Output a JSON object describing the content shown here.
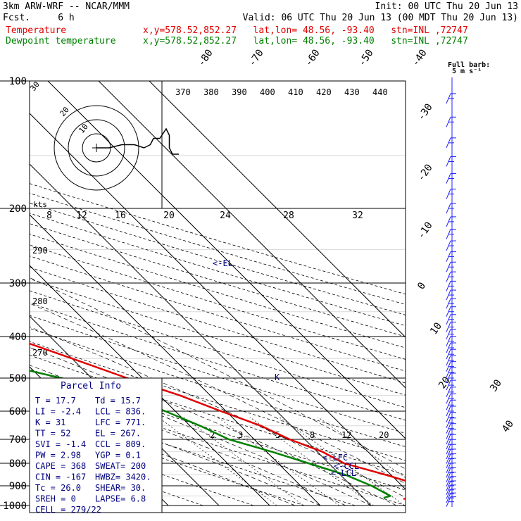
{
  "header": {
    "model": "3km ARW-WRF -- NCAR/MMM",
    "init": "Init: 00 UTC Thu 20 Jun 13",
    "fcst": "Fcst.     6 h",
    "valid": "Valid: 06 UTC Thu 20 Jun 13 (00 MDT Thu 20 Jun 13)",
    "temp_label": "Temperature",
    "temp_info": "x,y=578.52,852.27   lat,lon= 48.56, -93.40   stn=INL ,72747",
    "dew_label": "Dewpoint temperature",
    "dew_info": "x,y=578.52,852.27   lat,lon= 48.56, -93.40   stn=INL ,72747",
    "barb_note_1": "Full barb:",
    "barb_note_2": "5 m s⁻¹"
  },
  "colors": {
    "temperature": "#e00000",
    "dewpoint": "#008000",
    "text_blue": "#000080",
    "barb_blue": "#2020ff"
  },
  "parcel_info": {
    "title": "Parcel Info",
    "rows": [
      [
        "T  =   17.7",
        "Td =  15.7"
      ],
      [
        "LI =   -2.4",
        "LCL =  836."
      ],
      [
        "K  =     31",
        "LFC =  771."
      ],
      [
        "TT =     52",
        "EL  =  267."
      ],
      [
        "SVI =  -1.4",
        "CCL =  809."
      ],
      [
        "PW =   2.98",
        "YGP =   0.1"
      ],
      [
        "CAPE =  368",
        "SWEAT=  200"
      ],
      [
        "CIN =  -167",
        "HWBZ= 3420."
      ],
      [
        "Tc =   26.0",
        "SHEAR=  30."
      ],
      [
        "SREH =    0",
        "LAPSE=  6.8"
      ],
      [
        "CELL = 279/22",
        ""
      ]
    ]
  },
  "chart_data": {
    "type": "skew-t",
    "pressure_levels": [
      "100",
      "200",
      "300",
      "400",
      "500",
      "600",
      "700",
      "800",
      "900",
      "1000"
    ],
    "isotherm_labels": [
      "-80",
      "-70",
      "-60",
      "-50",
      "-40",
      "-30",
      "-20",
      "-10",
      "0",
      "10",
      "20",
      "30",
      "40"
    ],
    "theta_labels": [
      "370",
      "380",
      "390",
      "400",
      "410",
      "420",
      "430",
      "440"
    ],
    "theta_left_labels": [
      "290",
      "280",
      "270"
    ],
    "hodograph_ticks": [
      "8",
      "12",
      "16",
      "20",
      "24",
      "28",
      "32"
    ],
    "hodograph_unit": "kts",
    "mixing_ratio_labels": [
      "2",
      "3",
      "5",
      "8",
      "12",
      "20"
    ],
    "parcel_markers": [
      "<-EL",
      "<-LFC",
      "<-CCL",
      "<-LCL",
      "K"
    ],
    "hodo_ring_labels": [
      "30",
      "20",
      "10"
    ],
    "temperature": {
      "name": "Temperature",
      "points": [
        [
          100,
          -55
        ],
        [
          120,
          -60
        ],
        [
          140,
          -64
        ],
        [
          160,
          -67
        ],
        [
          180,
          -70
        ],
        [
          200,
          -70
        ],
        [
          250,
          -56
        ],
        [
          300,
          -46
        ],
        [
          350,
          -36
        ],
        [
          400,
          -28
        ],
        [
          450,
          -20
        ],
        [
          500,
          -13
        ],
        [
          550,
          -6
        ],
        [
          600,
          -1
        ],
        [
          650,
          4
        ],
        [
          700,
          7
        ],
        [
          750,
          11
        ],
        [
          800,
          13
        ],
        [
          850,
          19
        ],
        [
          900,
          24
        ],
        [
          950,
          25
        ],
        [
          960,
          21
        ],
        [
          965,
          17.7
        ]
      ]
    },
    "dewpoint": {
      "name": "Dewpoint temperature",
      "points": [
        [
          100,
          -80
        ],
        [
          130,
          -84
        ],
        [
          155,
          -77
        ],
        [
          180,
          -80
        ],
        [
          200,
          -86
        ],
        [
          220,
          -88
        ],
        [
          260,
          -80
        ],
        [
          300,
          -64
        ],
        [
          350,
          -52
        ],
        [
          380,
          -51
        ],
        [
          420,
          -44
        ],
        [
          460,
          -36
        ],
        [
          500,
          -26
        ],
        [
          550,
          -17
        ],
        [
          600,
          -12
        ],
        [
          650,
          -8
        ],
        [
          700,
          -5
        ],
        [
          750,
          1
        ],
        [
          800,
          6
        ],
        [
          850,
          11
        ],
        [
          900,
          14
        ],
        [
          950,
          15.7
        ],
        [
          960,
          14
        ]
      ]
    },
    "hodograph": [
      [
        0,
        0
      ],
      [
        4,
        0
      ],
      [
        8,
        -1
      ],
      [
        12,
        -1
      ],
      [
        15,
        0
      ],
      [
        17,
        -1
      ],
      [
        18,
        -3
      ],
      [
        20,
        -3
      ],
      [
        22,
        -6
      ],
      [
        23,
        -4
      ],
      [
        23,
        0
      ],
      [
        24,
        2
      ],
      [
        26,
        2
      ]
    ],
    "wind_barb_pressures": [
      110,
      125,
      140,
      155,
      170,
      185,
      200,
      215,
      230,
      245,
      260,
      275,
      290,
      305,
      320,
      335,
      350,
      365,
      380,
      395,
      410,
      425,
      440,
      455,
      470,
      485,
      500,
      520,
      540,
      560,
      580,
      600,
      620,
      640,
      660,
      680,
      700,
      720,
      740,
      760,
      780,
      800,
      820,
      840,
      860,
      880,
      900,
      920,
      940,
      960,
      980
    ]
  }
}
